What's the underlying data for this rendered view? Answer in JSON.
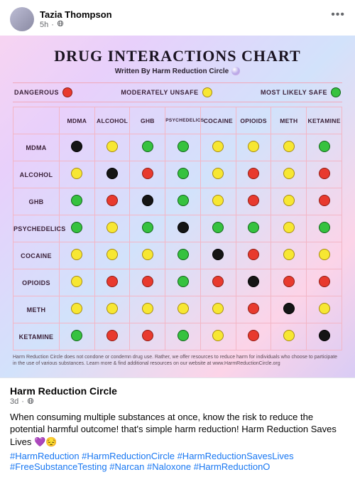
{
  "poster": {
    "name": "Tazia Thompson",
    "time": "5h",
    "audience_icon": "globe"
  },
  "menu_icon": "ellipsis",
  "chart": {
    "title": "DRUG INTERACTIONS CHART",
    "subtitle": "Written By Harm Reduction Circle",
    "legend": [
      {
        "label": "DANGEROUS",
        "color_key": "red"
      },
      {
        "label": "MODERATELY UNSAFE",
        "color_key": "yellow"
      },
      {
        "label": "MOST LIKELY SAFE",
        "color_key": "green"
      }
    ],
    "colors": {
      "red": {
        "fill": "#e83a2e",
        "border": "#8f1d15"
      },
      "yellow": {
        "fill": "#f7e733",
        "border": "#a78b12"
      },
      "green": {
        "fill": "#36c23f",
        "border": "#12651a"
      },
      "black": {
        "fill": "#151515",
        "border": "#000000"
      }
    },
    "columns": [
      "MDMA",
      "ALCOHOL",
      "GHB",
      "PSYCHEDELICS",
      "COCAINE",
      "OPIOIDS",
      "METH",
      "KETAMINE"
    ],
    "rows": [
      "MDMA",
      "ALCOHOL",
      "GHB",
      "PSYCHEDELICS",
      "COCAINE",
      "OPIOIDS",
      "METH",
      "KETAMINE"
    ],
    "small_cols": [
      3
    ],
    "matrix": [
      [
        "black",
        "yellow",
        "green",
        "green",
        "yellow",
        "yellow",
        "yellow",
        "green"
      ],
      [
        "yellow",
        "black",
        "red",
        "green",
        "yellow",
        "red",
        "yellow",
        "red"
      ],
      [
        "green",
        "red",
        "black",
        "green",
        "yellow",
        "red",
        "yellow",
        "red"
      ],
      [
        "green",
        "yellow",
        "green",
        "black",
        "green",
        "green",
        "yellow",
        "green"
      ],
      [
        "yellow",
        "yellow",
        "yellow",
        "green",
        "black",
        "red",
        "yellow",
        "yellow"
      ],
      [
        "yellow",
        "red",
        "red",
        "green",
        "red",
        "black",
        "red",
        "red"
      ],
      [
        "yellow",
        "yellow",
        "yellow",
        "yellow",
        "yellow",
        "red",
        "black",
        "yellow"
      ],
      [
        "green",
        "red",
        "red",
        "green",
        "yellow",
        "red",
        "yellow",
        "black"
      ]
    ],
    "footnote": "Harm Reduction Circle does not condone or condemn drug use. Rather, we offer resources to reduce harm for individuals who choose to participate in the use of various substances. Learn more & find additional resources on our website at www.HarmReductionCircle.org",
    "grid_color": "#f3b6c6",
    "background_gradient": [
      "#f7d4f2",
      "#e8d0fb",
      "#d2e2fb",
      "#fcd4e8",
      "#d9ccf5"
    ],
    "title_fontsize": 22,
    "subtitle_fontsize": 10,
    "header_fontsize": 9,
    "dot_size": 16
  },
  "shared": {
    "page_name": "Harm Reduction Circle",
    "time": "3d",
    "body": "When consuming multiple substances at once, know the risk to reduce the potential harmful outcome! that's simple harm reduction! Harm Reduction Saves Lives 💜😔",
    "hashtags": [
      "#HarmReduction",
      "#HarmReductionCircle",
      "#HarmReductionSavesLives",
      "#FreeSubstanceTesting",
      "#Narcan",
      "#Naloxone",
      "#HarmReductionO"
    ],
    "hashtag_color": "#1877f2"
  }
}
